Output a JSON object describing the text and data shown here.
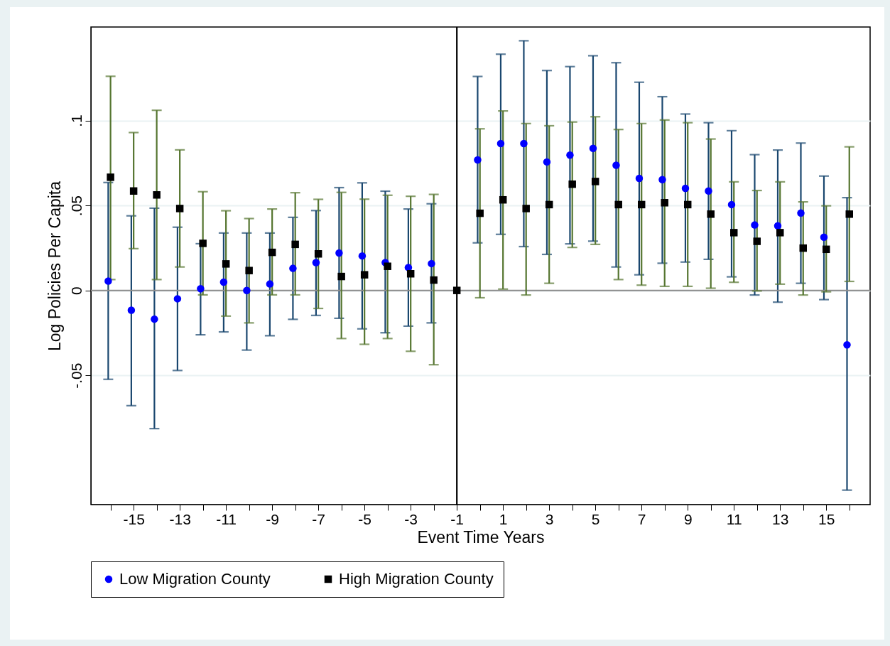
{
  "chart_data": {
    "type": "scatter",
    "xlabel": "Event Time Years",
    "ylabel": "Log Policies Per Capita",
    "xlim": [
      -16.85,
      16.9
    ],
    "ylim": [
      -0.126,
      0.155
    ],
    "xticks": [
      {
        "value": -16,
        "label": null
      },
      -15,
      {
        "value": -14,
        "label": null
      },
      -13,
      {
        "value": -12,
        "label": null
      },
      -11,
      {
        "value": -10,
        "label": null
      },
      -9,
      {
        "value": -8,
        "label": null
      },
      -7,
      {
        "value": -6,
        "label": null
      },
      -5,
      {
        "value": -4,
        "label": null
      },
      -3,
      {
        "value": -2,
        "label": null
      },
      -1,
      {
        "value": 0,
        "label": null
      },
      1,
      {
        "value": 2,
        "label": null
      },
      3,
      {
        "value": 4,
        "label": null
      },
      5,
      {
        "value": 6,
        "label": null
      },
      7,
      {
        "value": 8,
        "label": null
      },
      9,
      {
        "value": 10,
        "label": null
      },
      11,
      {
        "value": 12,
        "label": null
      },
      13,
      {
        "value": 14,
        "label": null
      },
      15,
      {
        "value": 16,
        "label": null
      }
    ],
    "yticks": [
      {
        "value": -0.05,
        "label": "-.05"
      },
      0,
      {
        "value": 0.05,
        "label": ".05"
      },
      {
        "value": 0.1,
        "label": ".1"
      }
    ],
    "grid": "y",
    "legend": "bottom",
    "ref_lines": [
      {
        "axis": "y",
        "value": 0,
        "color": "#8c8c8c"
      },
      {
        "axis": "x",
        "value": -1,
        "color": "#000000"
      }
    ],
    "series": [
      {
        "name": "Low Migration County",
        "color": "#0000ff",
        "marker": "circle",
        "x": [
          -16.1,
          -15.1,
          -14.1,
          -13.1,
          -12.1,
          -11.1,
          -10.1,
          -9.1,
          -8.1,
          -7.1,
          -6.1,
          -5.1,
          -4.1,
          -3.1,
          -2.1,
          -0.1,
          0.9,
          1.9,
          2.9,
          3.9,
          4.9,
          5.9,
          6.9,
          7.9,
          8.9,
          9.9,
          10.9,
          11.9,
          12.9,
          13.9,
          14.9,
          15.9
        ],
        "values": [
          0.0055,
          -0.0116,
          -0.0169,
          -0.0049,
          0.001,
          0.0049,
          0.0,
          0.0038,
          0.013,
          0.0164,
          0.022,
          0.0203,
          0.0164,
          0.0135,
          0.0158,
          0.0768,
          0.0864,
          0.0864,
          0.0756,
          0.0796,
          0.0836,
          0.0737,
          0.0659,
          0.0652,
          0.0601,
          0.0585,
          0.0505,
          0.0385,
          0.038,
          0.0455,
          0.0313,
          -0.032
        ],
        "errors": [
          [
            -0.0523,
            0.0635
          ],
          [
            -0.0678,
            0.0439
          ],
          [
            -0.0813,
            0.0484
          ],
          [
            -0.0471,
            0.0372
          ],
          [
            -0.0261,
            0.0275
          ],
          [
            -0.0244,
            0.0338
          ],
          [
            -0.0351,
            0.0338
          ],
          [
            -0.0266,
            0.0338
          ],
          [
            -0.017,
            0.043
          ],
          [
            -0.0147,
            0.047
          ],
          [
            -0.0164,
            0.0605
          ],
          [
            -0.0226,
            0.0633
          ],
          [
            -0.0249,
            0.0584
          ],
          [
            -0.021,
            0.0479
          ],
          [
            -0.0191,
            0.051
          ],
          [
            0.028,
            0.1259
          ],
          [
            0.033,
            0.139
          ],
          [
            0.0258,
            0.1469
          ],
          [
            0.0212,
            0.1294
          ],
          [
            0.0274,
            0.1317
          ],
          [
            0.029,
            0.1381
          ],
          [
            0.0138,
            0.134
          ],
          [
            0.0092,
            0.1225
          ],
          [
            0.016,
            0.114
          ],
          [
            0.0167,
            0.1038
          ],
          [
            0.0183,
            0.0987
          ],
          [
            0.008,
            0.094
          ],
          [
            -0.0027,
            0.0799
          ],
          [
            -0.0069,
            0.0826
          ],
          [
            0.0042,
            0.0867
          ],
          [
            -0.0054,
            0.0673
          ],
          [
            -0.1175,
            0.0546
          ]
        ]
      },
      {
        "name": "High Migration County",
        "color": "#000000",
        "marker": "square",
        "x": [
          -16,
          -15,
          -14,
          -13,
          -12,
          -11,
          -10,
          -9,
          -8,
          -7,
          -6,
          -5,
          -4,
          -3,
          -2,
          -1,
          0,
          1,
          2,
          3,
          4,
          5,
          6,
          7,
          8,
          9,
          10,
          11,
          12,
          13,
          14,
          15,
          16
        ],
        "values": [
          0.0666,
          0.0585,
          0.0562,
          0.0482,
          0.0277,
          0.0156,
          0.0117,
          0.0224,
          0.0271,
          0.0215,
          0.0082,
          0.0092,
          0.0142,
          0.0098,
          0.0061,
          0,
          0.0454,
          0.0533,
          0.0482,
          0.0505,
          0.0625,
          0.0641,
          0.0505,
          0.0505,
          0.0516,
          0.0505,
          0.0449,
          0.034,
          0.0289,
          0.034,
          0.0249,
          0.0242,
          0.0449
        ],
        "errors": [
          [
            0.0064,
            0.126
          ],
          [
            0.0246,
            0.0929
          ],
          [
            0.0064,
            0.106
          ],
          [
            0.0138,
            0.0827
          ],
          [
            -0.0026,
            0.0581
          ],
          [
            -0.0151,
            0.0469
          ],
          [
            -0.0191,
            0.0423
          ],
          [
            -0.0026,
            0.0479
          ],
          [
            -0.0026,
            0.0575
          ],
          [
            -0.0106,
            0.0536
          ],
          [
            -0.0283,
            0.0577
          ],
          [
            -0.0317,
            0.0537
          ],
          [
            -0.0283,
            0.056
          ],
          [
            -0.0358,
            0.0554
          ],
          [
            -0.0437,
            0.0565
          ],
          null,
          [
            -0.0043,
            0.0951
          ],
          [
            0.0008,
            0.1056
          ],
          [
            -0.0027,
            0.0982
          ],
          [
            0.0042,
            0.0969
          ],
          [
            0.0253,
            0.0991
          ],
          [
            0.0271,
            0.1022
          ],
          [
            0.0064,
            0.0947
          ],
          [
            0.0031,
            0.0982
          ],
          [
            0.0024,
            0.1003
          ],
          [
            0.0024,
            0.0987
          ],
          [
            0.0013,
            0.0891
          ],
          [
            0.0048,
            0.0639
          ],
          [
            -0.0003,
            0.0588
          ],
          [
            0.0037,
            0.0639
          ],
          [
            -0.0027,
            0.0521
          ],
          [
            -0.0008,
            0.0498
          ],
          [
            0.0053,
            0.0845
          ]
        ]
      }
    ]
  }
}
